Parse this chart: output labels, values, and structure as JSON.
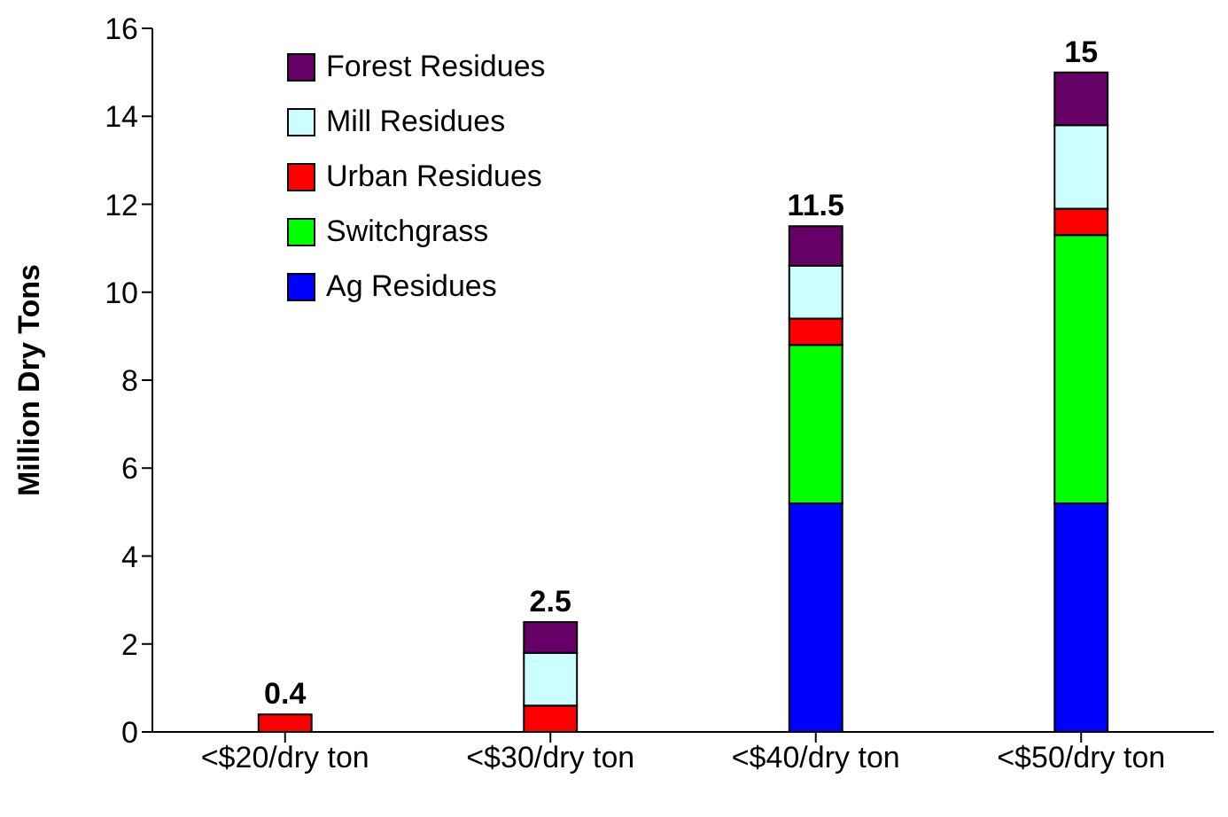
{
  "chart_data": {
    "type": "bar",
    "stacked": true,
    "ylabel": "Million Dry Tons",
    "categories": [
      "<$20/dry ton",
      "<$30/dry ton",
      "<$40/dry ton",
      "<$50/dry ton"
    ],
    "series": [
      {
        "name": "Ag Residues",
        "color": "#0000ff",
        "values": [
          null,
          null,
          5.2,
          5.2
        ]
      },
      {
        "name": "Switchgrass",
        "color": "#00ff00",
        "values": [
          null,
          null,
          3.6,
          6.1
        ]
      },
      {
        "name": "Urban Residues",
        "color": "#ff0000",
        "values": [
          0.4,
          0.6,
          0.6,
          0.6
        ]
      },
      {
        "name": "Mill Residues",
        "color": "#ccffff",
        "values": [
          null,
          1.2,
          1.2,
          1.9
        ]
      },
      {
        "name": "Forest Residues",
        "color": "#660066",
        "values": [
          null,
          0.7,
          0.9,
          1.2
        ]
      }
    ],
    "totals": [
      "0.4",
      "2.5",
      "11.5",
      "15"
    ],
    "ylim": [
      0,
      16
    ],
    "yticks": [
      0,
      2,
      4,
      6,
      8,
      10,
      12,
      14,
      16
    ],
    "grid": false,
    "legend": "top left"
  }
}
